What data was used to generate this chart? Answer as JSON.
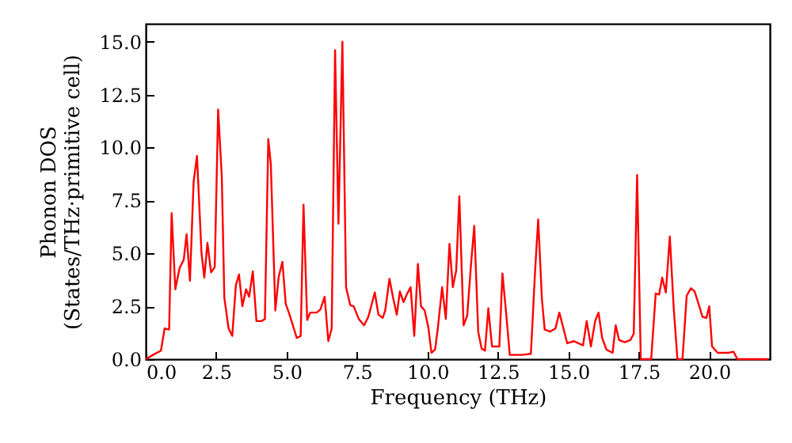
{
  "chart_data": {
    "type": "line",
    "xlabel": "Frequency (THz)",
    "ylabel": "Phonon DOS\n(States/THz·primitive cell)",
    "x": [
      0,
      0.26,
      0.54,
      0.67,
      0.83,
      0.92,
      1.05,
      1.2,
      1.35,
      1.45,
      1.57,
      1.7,
      1.82,
      1.98,
      2.08,
      2.19,
      2.32,
      2.45,
      2.57,
      2.7,
      2.79,
      2.94,
      3.07,
      3.2,
      3.31,
      3.43,
      3.56,
      3.67,
      3.8,
      3.93,
      4.12,
      4.23,
      4.35,
      4.44,
      4.6,
      4.72,
      4.85,
      4.97,
      5.08,
      5.2,
      5.36,
      5.5,
      5.6,
      5.73,
      5.84,
      6.07,
      6.2,
      6.35,
      6.48,
      6.6,
      6.72,
      6.84,
      6.98,
      7.11,
      7.26,
      7.38,
      7.56,
      7.75,
      7.9,
      8.13,
      8.26,
      8.41,
      8.5,
      8.65,
      8.78,
      8.91,
      9.02,
      9.15,
      9.28,
      9.4,
      9.53,
      9.66,
      9.77,
      9.9,
      10.03,
      10.14,
      10.27,
      10.37,
      10.52,
      10.65,
      10.78,
      10.9,
      11.02,
      11.13,
      11.28,
      11.41,
      11.54,
      11.66,
      11.8,
      11.92,
      12.04,
      12.16,
      12.29,
      12.55,
      12.66,
      12.79,
      12.92,
      13.35,
      13.67,
      13.82,
      13.93,
      14.06,
      14.16,
      14.35,
      14.54,
      14.68,
      14.96,
      15.2,
      15.52,
      15.65,
      15.8,
      15.95,
      16.07,
      16.2,
      16.35,
      16.57,
      16.68,
      16.8,
      17.0,
      17.2,
      17.32,
      17.44,
      17.57,
      17.94,
      18.1,
      18.22,
      18.33,
      18.46,
      18.6,
      18.74,
      18.87,
      19.05,
      19.2,
      19.35,
      19.48,
      19.6,
      19.76,
      19.9,
      20.0,
      20.1,
      20.3,
      20.67,
      20.86,
      21.0,
      22.1
    ],
    "series": [
      {
        "color": "#ff0000",
        "values": [
          0,
          0.2,
          0.4,
          1.45,
          1.4,
          6.9,
          3.3,
          4.3,
          4.7,
          5.9,
          3.7,
          8.4,
          9.6,
          5.0,
          3.85,
          5.5,
          4.1,
          4.35,
          11.8,
          8.6,
          2.9,
          1.45,
          1.1,
          3.5,
          4.0,
          2.5,
          3.3,
          2.95,
          4.15,
          1.8,
          1.8,
          1.9,
          10.4,
          9.2,
          2.3,
          3.9,
          4.6,
          2.6,
          2.2,
          1.7,
          1.0,
          1.1,
          7.3,
          1.85,
          2.2,
          2.2,
          2.35,
          2.95,
          0.85,
          1.45,
          14.6,
          6.4,
          15.0,
          3.4,
          2.55,
          2.5,
          1.9,
          1.6,
          2.0,
          3.15,
          2.1,
          1.95,
          2.3,
          3.8,
          2.9,
          2.1,
          3.2,
          2.7,
          3.1,
          3.4,
          1.1,
          4.5,
          2.5,
          2.3,
          1.5,
          0.3,
          0.45,
          1.5,
          3.4,
          1.9,
          5.45,
          3.4,
          4.2,
          7.7,
          1.6,
          2.05,
          4.4,
          6.3,
          1.3,
          0.5,
          0.4,
          2.4,
          0.6,
          0.6,
          4.05,
          2.2,
          0.2,
          0.2,
          0.25,
          4.2,
          6.6,
          2.85,
          1.4,
          1.3,
          1.45,
          2.2,
          0.75,
          0.85,
          0.65,
          1.8,
          0.6,
          1.8,
          2.2,
          1.0,
          0.45,
          0.3,
          1.6,
          0.9,
          0.8,
          0.9,
          1.2,
          8.7,
          0,
          0,
          3.1,
          3.05,
          3.85,
          3.15,
          5.8,
          2.4,
          0,
          0,
          3.0,
          3.35,
          3.2,
          2.7,
          2.0,
          1.95,
          2.5,
          0.6,
          0.3,
          0.3,
          0.35,
          0,
          0
        ]
      }
    ],
    "xlim": [
      0,
      22.15
    ],
    "ylim": [
      0,
      15.85
    ],
    "xticks": [
      {
        "value": 0,
        "label": "0.0"
      },
      {
        "value": 2.5,
        "label": "2.5"
      },
      {
        "value": 5,
        "label": "5.0"
      },
      {
        "value": 7.5,
        "label": "7.5"
      },
      {
        "value": 10,
        "label": "10.0"
      },
      {
        "value": 12.5,
        "label": "12.5"
      },
      {
        "value": 15,
        "label": "15.0"
      },
      {
        "value": 17.5,
        "label": "17.5"
      },
      {
        "value": 20,
        "label": "20.0"
      }
    ],
    "yticks": [
      {
        "value": 0,
        "label": "0.0"
      },
      {
        "value": 2.5,
        "label": "2.5"
      },
      {
        "value": 5,
        "label": "5.0"
      },
      {
        "value": 7.5,
        "label": "7.5"
      },
      {
        "value": 10,
        "label": "10.0"
      },
      {
        "value": 12.5,
        "label": "12.5"
      },
      {
        "value": 15,
        "label": "15.0"
      }
    ],
    "grid": false,
    "marker": "none",
    "line_style": "solid"
  }
}
